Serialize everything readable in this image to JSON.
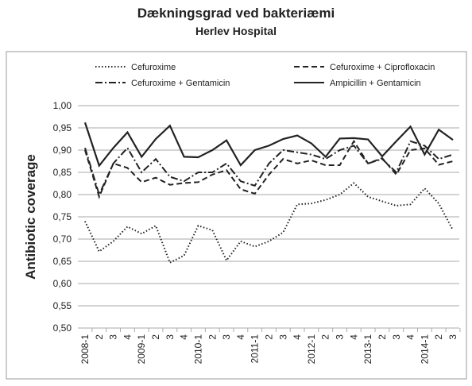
{
  "chart_data": {
    "type": "line",
    "title": "Dækningsgrad ved bakteriæmi",
    "subtitle": "Herlev Hospital",
    "ylabel": "Antibiotic coverage",
    "categories": [
      "2008-1",
      "2",
      "3",
      "4",
      "2009-1",
      "2",
      "3",
      "4",
      "2010-1",
      "2",
      "3",
      "4",
      "2011-1",
      "2",
      "3",
      "4",
      "2012-1",
      "2",
      "3",
      "4",
      "2013-1",
      "2",
      "3",
      "4",
      "2014-1",
      "2",
      "3"
    ],
    "ylim": [
      0.5,
      1.0
    ],
    "yticks": [
      {
        "value": 0.5,
        "label": "0,50"
      },
      {
        "value": 0.55,
        "label": "0,55"
      },
      {
        "value": 0.6,
        "label": "0,60"
      },
      {
        "value": 0.65,
        "label": "0,65"
      },
      {
        "value": 0.7,
        "label": "0,70"
      },
      {
        "value": 0.75,
        "label": "0,75"
      },
      {
        "value": 0.8,
        "label": "0,80"
      },
      {
        "value": 0.85,
        "label": "0,85"
      },
      {
        "value": 0.9,
        "label": "0,90"
      },
      {
        "value": 0.95,
        "label": "0,95"
      },
      {
        "value": 1.0,
        "label": "1,00"
      }
    ],
    "grid": true,
    "series": [
      {
        "name": "Cefuroxime",
        "color": "#222222",
        "dash": "dotted",
        "values": [
          0.74,
          0.672,
          0.695,
          0.728,
          0.712,
          0.73,
          0.647,
          0.663,
          0.73,
          0.72,
          0.652,
          0.695,
          0.683,
          0.695,
          0.715,
          0.778,
          0.78,
          0.788,
          0.8,
          0.826,
          0.795,
          0.785,
          0.775,
          0.778,
          0.814,
          0.78,
          0.72
        ]
      },
      {
        "name": "Cefuroxime + Ciprofloxacin",
        "color": "#222222",
        "dash": "dashed",
        "values": [
          0.9,
          0.795,
          0.87,
          0.86,
          0.828,
          0.838,
          0.822,
          0.826,
          0.828,
          0.845,
          0.855,
          0.812,
          0.802,
          0.845,
          0.88,
          0.87,
          0.877,
          0.866,
          0.866,
          0.92,
          0.87,
          0.882,
          0.845,
          0.9,
          0.904,
          0.867,
          0.875
        ]
      },
      {
        "name": "Cefuroxime + Gentamicin",
        "color": "#222222",
        "dash": "dashdot",
        "values": [
          0.905,
          0.8,
          0.87,
          0.905,
          0.85,
          0.88,
          0.84,
          0.83,
          0.85,
          0.85,
          0.87,
          0.83,
          0.82,
          0.87,
          0.9,
          0.895,
          0.89,
          0.88,
          0.9,
          0.91,
          0.87,
          0.88,
          0.85,
          0.92,
          0.91,
          0.88,
          0.89
        ]
      },
      {
        "name": "Ampicillin + Gentamicin",
        "color": "#222222",
        "dash": "solid",
        "values": [
          0.962,
          0.865,
          0.905,
          0.94,
          0.885,
          0.925,
          0.955,
          0.885,
          0.884,
          0.9,
          0.922,
          0.866,
          0.9,
          0.91,
          0.925,
          0.933,
          0.915,
          0.885,
          0.926,
          0.927,
          0.924,
          0.886,
          0.92,
          0.953,
          0.89,
          0.946,
          0.923
        ]
      }
    ]
  }
}
